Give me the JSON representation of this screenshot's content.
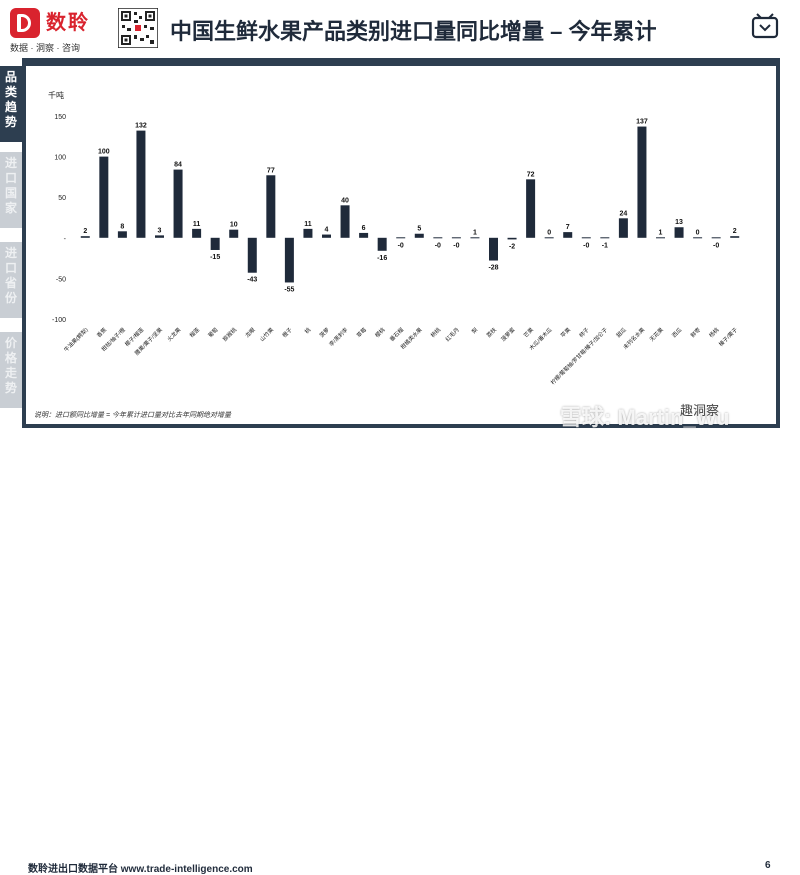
{
  "header": {
    "brand": "数聆",
    "brand_sub": "数据 · 洞察 · 咨询",
    "title": "中国生鲜水果产品类别进口量同比增量 – 今年累计"
  },
  "side_tabs": [
    "品类趋势",
    "进口国家",
    "进口省份",
    "价格走势"
  ],
  "footer": {
    "platform": "数聆进出口数据平台 www.trade-intelligence.com",
    "page": "6",
    "note": "说明：进口额同比增量 = 今年累计进口量对比去年同期绝对增量"
  },
  "watermarks": {
    "snowball": "雪球: Martin_Wu",
    "channel": "趣洞察"
  },
  "colors": {
    "bar": "#1f2a3a",
    "frame": "#2d3e50",
    "brand": "#d9232e"
  },
  "chart_data": {
    "type": "bar",
    "ylabel": "千吨",
    "ylim": [
      -100,
      150
    ],
    "yticks": [
      150,
      100,
      50,
      0,
      -50,
      -100
    ],
    "ytick_labels": [
      "150",
      "100",
      "50",
      "-",
      "-50",
      "-100"
    ],
    "categories": [
      "牛油果(鳄梨)",
      "香蕉",
      "柑桔/柚子/橙",
      "椰子/榴莲",
      "腰果/栗子/坚果",
      "火龙果",
      "榴莲",
      "葡萄",
      "猕猴桃",
      "龙眼",
      "山竹果",
      "橙子",
      "桃",
      "菠萝",
      "李/黑刺李",
      "草莓",
      "樱桃",
      "番石榴",
      "柑橘类水果",
      "杨桃",
      "红毛丹",
      "梨",
      "荔枝",
      "菠萝蜜",
      "芒果",
      "木瓜/番木瓜",
      "苹果",
      "柿子",
      "柠檬/葡萄柚/罗甘莓/榛子/加仑子",
      "甜瓜",
      "未列名水果",
      "无花果",
      "西瓜",
      "鲜枣",
      "杨桃2",
      "榛子/栗子"
    ],
    "category_labels": [
      "牛油果(鳄梨)",
      "香蕉",
      "柑桔/柚子/橙",
      "椰子/榴莲",
      "腰果/栗子/坚果",
      "火龙果",
      "榴莲",
      "葡萄",
      "猕猴桃",
      "龙眼",
      "山竹果",
      "橙子",
      "桃",
      "菠萝",
      "李/黑刺李",
      "草莓",
      "樱桃",
      "番石榴",
      "柑橘类水果",
      "杨桃",
      "红毛丹",
      "梨",
      "荔枝",
      "菠萝蜜",
      "芒果",
      "木瓜/番木瓜",
      "苹果",
      "柿子",
      "柠檬/葡萄柚/罗甘莓/榛子/加仑子",
      "甜瓜",
      "未列名水果",
      "无花果",
      "西瓜",
      "鲜枣",
      "杨桃",
      "榛子/栗子"
    ],
    "values": [
      2,
      100,
      8,
      132,
      3,
      84,
      11,
      -15,
      10,
      -43,
      77,
      -55,
      11,
      4,
      40,
      6,
      -16,
      -0.3,
      5,
      -0.3,
      -0.3,
      1,
      -28,
      -2,
      72,
      0,
      7,
      -0.3,
      -1,
      24,
      137,
      1,
      13,
      0,
      -0.3,
      2
    ],
    "value_labels": [
      "2",
      "100",
      "8",
      "132",
      "3",
      "84",
      "11",
      "-15",
      "10",
      "-43",
      "77",
      "-55",
      "11",
      "4",
      "40",
      "6",
      "-16",
      "-0",
      "5",
      "-0",
      "-0",
      "1",
      "-28",
      "-2",
      "72",
      "0",
      "7",
      "-0",
      "-1",
      "24",
      "137",
      "1",
      "13",
      "0",
      "-0",
      "2"
    ],
    "grid": false,
    "legend": "none"
  }
}
